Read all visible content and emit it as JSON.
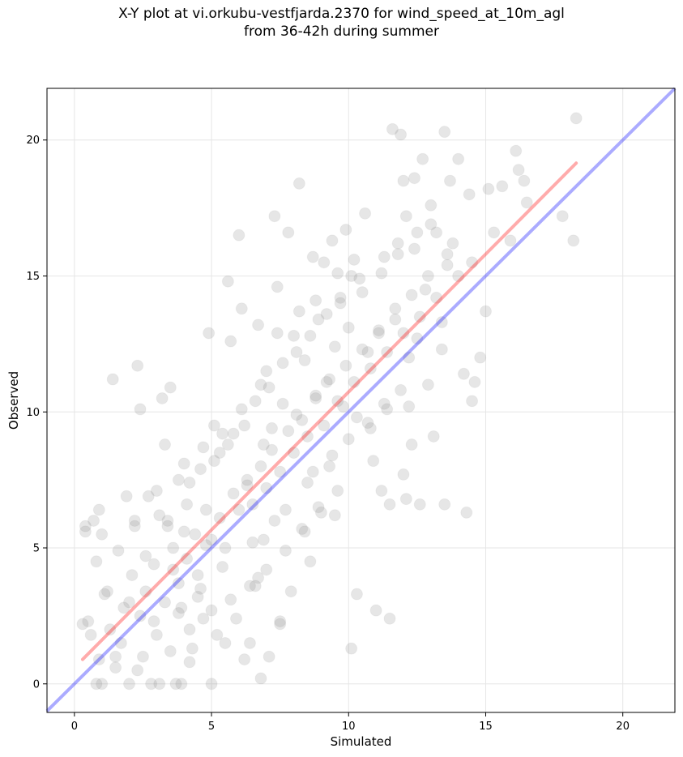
{
  "chart_data": {
    "type": "scatter",
    "title_line1": "X-Y plot at vi.orkubu-vestfjarda.2370 for wind_speed_at_10m_agl",
    "title_line2": "from 36-42h during summer",
    "xlabel": "Simulated",
    "ylabel": "Observed",
    "xlim": [
      -1.0,
      21.9
    ],
    "ylim": [
      -1.05,
      21.9
    ],
    "x_ticks": [
      0,
      5,
      10,
      15,
      20
    ],
    "y_ticks": [
      0,
      5,
      10,
      15,
      20
    ],
    "x_tick_labels": [
      "0",
      "5",
      "10",
      "15",
      "20"
    ],
    "y_tick_labels": [
      "0",
      "5",
      "10",
      "15",
      "20"
    ],
    "grid": true,
    "legend": "none",
    "point_color": "#808080",
    "point_opacity": 0.2,
    "reference_line": {
      "description": "y = x",
      "color": "#0000ff",
      "x": [
        -1.0,
        21.9
      ],
      "y": [
        -1.0,
        21.9
      ]
    },
    "fit_line": {
      "color": "#ff0000",
      "x": [
        0.3,
        18.3
      ],
      "y": [
        0.9,
        19.15
      ]
    },
    "points": [
      [
        0.3,
        2.2
      ],
      [
        0.4,
        5.8
      ],
      [
        0.5,
        2.3
      ],
      [
        0.4,
        5.6
      ],
      [
        0.6,
        1.8
      ],
      [
        0.7,
        6.0
      ],
      [
        0.8,
        4.5
      ],
      [
        0.9,
        6.4
      ],
      [
        0.8,
        0.0
      ],
      [
        1.0,
        0.0
      ],
      [
        1.0,
        5.5
      ],
      [
        1.1,
        3.3
      ],
      [
        0.9,
        0.9
      ],
      [
        1.3,
        2.0
      ],
      [
        1.4,
        11.2
      ],
      [
        1.5,
        0.6
      ],
      [
        1.6,
        4.9
      ],
      [
        1.8,
        2.8
      ],
      [
        1.9,
        6.9
      ],
      [
        2.0,
        0.0
      ],
      [
        2.2,
        5.8
      ],
      [
        2.3,
        11.7
      ],
      [
        2.4,
        10.1
      ],
      [
        2.5,
        1.0
      ],
      [
        2.6,
        4.7
      ],
      [
        2.7,
        6.9
      ],
      [
        2.8,
        0.0
      ],
      [
        2.9,
        2.3
      ],
      [
        3.0,
        7.1
      ],
      [
        3.1,
        0.0
      ],
      [
        3.2,
        10.5
      ],
      [
        3.3,
        8.8
      ],
      [
        3.4,
        6.0
      ],
      [
        3.5,
        10.9
      ],
      [
        3.6,
        4.2
      ],
      [
        3.7,
        0.0
      ],
      [
        3.8,
        2.6
      ],
      [
        3.9,
        0.0
      ],
      [
        4.0,
        5.6
      ],
      [
        4.1,
        6.6
      ],
      [
        4.2,
        0.8
      ],
      [
        4.3,
        1.3
      ],
      [
        4.5,
        3.2
      ],
      [
        4.6,
        7.9
      ],
      [
        4.7,
        2.4
      ],
      [
        4.8,
        5.1
      ],
      [
        4.9,
        12.9
      ],
      [
        5.0,
        0.0
      ],
      [
        5.1,
        9.5
      ],
      [
        5.2,
        1.8
      ],
      [
        5.3,
        8.5
      ],
      [
        5.4,
        4.3
      ],
      [
        5.5,
        1.5
      ],
      [
        5.6,
        14.8
      ],
      [
        5.7,
        12.6
      ],
      [
        5.8,
        9.2
      ],
      [
        5.9,
        2.4
      ],
      [
        6.0,
        16.5
      ],
      [
        6.1,
        13.8
      ],
      [
        6.2,
        0.9
      ],
      [
        6.3,
        7.5
      ],
      [
        6.4,
        1.5
      ],
      [
        6.5,
        5.2
      ],
      [
        6.6,
        3.6
      ],
      [
        6.7,
        13.2
      ],
      [
        6.8,
        0.2
      ],
      [
        6.9,
        8.8
      ],
      [
        7.0,
        11.5
      ],
      [
        7.1,
        1.0
      ],
      [
        7.2,
        9.4
      ],
      [
        7.3,
        17.2
      ],
      [
        7.4,
        14.6
      ],
      [
        7.5,
        2.2
      ],
      [
        7.6,
        10.3
      ],
      [
        7.7,
        6.4
      ],
      [
        7.8,
        16.6
      ],
      [
        7.9,
        3.4
      ],
      [
        8.0,
        12.8
      ],
      [
        8.1,
        9.9
      ],
      [
        8.2,
        18.4
      ],
      [
        8.3,
        5.7
      ],
      [
        8.4,
        11.9
      ],
      [
        8.5,
        7.4
      ],
      [
        8.6,
        4.5
      ],
      [
        8.7,
        15.7
      ],
      [
        8.8,
        10.5
      ],
      [
        8.9,
        13.4
      ],
      [
        9.0,
        6.3
      ],
      [
        9.1,
        15.5
      ],
      [
        9.2,
        11.1
      ],
      [
        9.3,
        8.0
      ],
      [
        9.4,
        16.3
      ],
      [
        9.5,
        12.4
      ],
      [
        9.6,
        7.1
      ],
      [
        9.7,
        14.0
      ],
      [
        9.8,
        10.2
      ],
      [
        9.9,
        16.7
      ],
      [
        10.0,
        13.1
      ],
      [
        10.1,
        1.3
      ],
      [
        10.2,
        15.6
      ],
      [
        10.3,
        9.8
      ],
      [
        10.5,
        14.4
      ],
      [
        10.6,
        17.3
      ],
      [
        10.7,
        12.2
      ],
      [
        10.8,
        9.4
      ],
      [
        10.9,
        8.2
      ],
      [
        11.0,
        2.7
      ],
      [
        11.1,
        12.9
      ],
      [
        11.2,
        7.1
      ],
      [
        11.3,
        15.7
      ],
      [
        11.4,
        10.1
      ],
      [
        11.5,
        2.4
      ],
      [
        11.6,
        20.4
      ],
      [
        11.7,
        13.4
      ],
      [
        11.8,
        16.2
      ],
      [
        11.9,
        20.2
      ],
      [
        12.0,
        7.7
      ],
      [
        12.1,
        17.2
      ],
      [
        12.2,
        12.0
      ],
      [
        12.3,
        8.8
      ],
      [
        12.4,
        18.6
      ],
      [
        12.5,
        16.6
      ],
      [
        12.6,
        6.6
      ],
      [
        12.7,
        19.3
      ],
      [
        12.8,
        14.5
      ],
      [
        12.9,
        11.0
      ],
      [
        13.0,
        17.6
      ],
      [
        13.1,
        9.1
      ],
      [
        13.2,
        16.6
      ],
      [
        13.4,
        12.3
      ],
      [
        13.5,
        20.3
      ],
      [
        13.6,
        15.8
      ],
      [
        13.7,
        18.5
      ],
      [
        13.8,
        16.2
      ],
      [
        14.0,
        19.3
      ],
      [
        14.2,
        11.4
      ],
      [
        14.3,
        6.3
      ],
      [
        14.4,
        18.0
      ],
      [
        14.5,
        15.5
      ],
      [
        14.6,
        11.1
      ],
      [
        14.8,
        12.0
      ],
      [
        15.0,
        13.7
      ],
      [
        15.1,
        18.2
      ],
      [
        15.3,
        16.6
      ],
      [
        15.6,
        18.3
      ],
      [
        15.9,
        16.3
      ],
      [
        16.1,
        19.6
      ],
      [
        16.2,
        18.9
      ],
      [
        16.4,
        18.5
      ],
      [
        16.5,
        17.7
      ],
      [
        17.8,
        17.2
      ],
      [
        18.2,
        16.3
      ],
      [
        18.3,
        20.8
      ],
      [
        14.5,
        10.4
      ],
      [
        13.5,
        6.6
      ],
      [
        12.1,
        6.8
      ],
      [
        11.5,
        6.6
      ],
      [
        10.3,
        3.3
      ],
      [
        7.5,
        2.3
      ],
      [
        6.7,
        3.9
      ],
      [
        1.2,
        3.4
      ],
      [
        1.7,
        1.5
      ],
      [
        2.0,
        3.0
      ],
      [
        2.1,
        4.0
      ],
      [
        2.4,
        2.5
      ],
      [
        2.6,
        3.4
      ],
      [
        2.9,
        4.4
      ],
      [
        3.0,
        1.8
      ],
      [
        3.3,
        3.0
      ],
      [
        3.6,
        5.0
      ],
      [
        3.8,
        3.7
      ],
      [
        4.1,
        4.6
      ],
      [
        4.4,
        5.5
      ],
      [
        4.5,
        4.0
      ],
      [
        4.8,
        6.4
      ],
      [
        5.0,
        5.3
      ],
      [
        5.3,
        6.1
      ],
      [
        5.5,
        5.0
      ],
      [
        5.8,
        7.0
      ],
      [
        6.0,
        6.4
      ],
      [
        6.3,
        7.3
      ],
      [
        6.5,
        6.6
      ],
      [
        6.8,
        8.0
      ],
      [
        7.0,
        7.2
      ],
      [
        7.2,
        8.6
      ],
      [
        7.5,
        7.8
      ],
      [
        7.8,
        9.3
      ],
      [
        8.0,
        8.5
      ],
      [
        8.3,
        9.7
      ],
      [
        8.5,
        9.1
      ],
      [
        8.8,
        10.6
      ],
      [
        9.1,
        9.5
      ],
      [
        9.3,
        11.2
      ],
      [
        9.6,
        10.4
      ],
      [
        9.9,
        11.7
      ],
      [
        10.2,
        11.1
      ],
      [
        10.5,
        12.3
      ],
      [
        10.8,
        11.6
      ],
      [
        11.1,
        13.0
      ],
      [
        11.4,
        12.2
      ],
      [
        11.7,
        13.8
      ],
      [
        12.0,
        12.9
      ],
      [
        12.3,
        14.3
      ],
      [
        12.6,
        13.5
      ],
      [
        12.9,
        15.0
      ],
      [
        13.2,
        14.2
      ],
      [
        13.6,
        15.4
      ],
      [
        14.0,
        15.0
      ],
      [
        3.1,
        6.2
      ],
      [
        3.4,
        5.8
      ],
      [
        2.2,
        6.0
      ],
      [
        4.2,
        7.4
      ],
      [
        5.1,
        8.2
      ],
      [
        5.6,
        8.8
      ],
      [
        6.2,
        9.5
      ],
      [
        6.6,
        10.4
      ],
      [
        7.1,
        10.9
      ],
      [
        7.6,
        11.8
      ],
      [
        8.1,
        12.2
      ],
      [
        8.6,
        12.8
      ],
      [
        9.2,
        13.6
      ],
      [
        9.7,
        14.2
      ],
      [
        10.1,
        15.0
      ],
      [
        1.5,
        1.0
      ],
      [
        2.3,
        0.5
      ],
      [
        3.5,
        1.2
      ],
      [
        4.2,
        2.0
      ],
      [
        5.0,
        2.7
      ],
      [
        5.7,
        3.1
      ],
      [
        6.4,
        3.6
      ],
      [
        7.0,
        4.2
      ],
      [
        7.7,
        4.9
      ],
      [
        8.4,
        5.6
      ],
      [
        8.9,
        6.5
      ],
      [
        9.5,
        6.2
      ],
      [
        4.6,
        3.5
      ],
      [
        3.9,
        2.8
      ],
      [
        6.9,
        5.3
      ],
      [
        7.3,
        6.0
      ],
      [
        8.7,
        7.8
      ],
      [
        9.4,
        8.4
      ],
      [
        10.0,
        9.0
      ],
      [
        10.7,
        9.6
      ],
      [
        11.3,
        10.3
      ],
      [
        11.9,
        10.8
      ],
      [
        12.2,
        10.2
      ],
      [
        12.5,
        12.7
      ],
      [
        13.4,
        13.3
      ],
      [
        4.0,
        8.1
      ],
      [
        4.7,
        8.7
      ],
      [
        3.8,
        7.5
      ],
      [
        5.4,
        9.2
      ],
      [
        6.1,
        10.1
      ],
      [
        6.8,
        11.0
      ],
      [
        7.4,
        12.9
      ],
      [
        8.2,
        13.7
      ],
      [
        8.8,
        14.1
      ],
      [
        9.6,
        15.1
      ],
      [
        10.4,
        14.9
      ],
      [
        11.2,
        15.1
      ],
      [
        11.8,
        15.8
      ],
      [
        12.4,
        16.0
      ],
      [
        13.0,
        16.9
      ],
      [
        12.0,
        18.5
      ]
    ]
  }
}
